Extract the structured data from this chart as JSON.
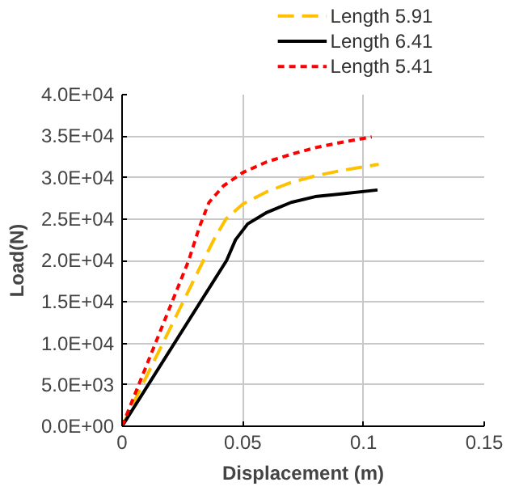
{
  "chart_data": {
    "type": "line",
    "xlabel": "Displacement (m)",
    "ylabel": "Load(N)",
    "xlim": [
      0,
      0.15
    ],
    "xticks": [
      0,
      0.05,
      0.1,
      0.15
    ],
    "ylim": [
      0,
      40000
    ],
    "yticks": [
      {
        "value": 0,
        "label": "0.0E+00"
      },
      {
        "value": 5000,
        "label": "5.0E+03"
      },
      {
        "value": 10000,
        "label": "1.0E+04"
      },
      {
        "value": 15000,
        "label": "1.5E+04"
      },
      {
        "value": 20000,
        "label": "2.0E+04"
      },
      {
        "value": 25000,
        "label": "2.5E+04"
      },
      {
        "value": 30000,
        "label": "3.0E+04"
      },
      {
        "value": 35000,
        "label": "3.5E+04"
      },
      {
        "value": 40000,
        "label": "4.0E+04"
      }
    ],
    "grid": true,
    "legend": "top right",
    "marker": "none",
    "series": [
      {
        "name": "Length 5.91",
        "color": "#ffc000",
        "line_style": "dashed",
        "x": [
          0,
          0.0337,
          0.038,
          0.043,
          0.05,
          0.06,
          0.07,
          0.08,
          0.09,
          0.1063
        ],
        "values": [
          0,
          20000,
          22500,
          25000,
          26800,
          28300,
          29400,
          30200,
          30800,
          31600
        ]
      },
      {
        "name": "Length 6.41",
        "color": "#000000",
        "line_style": "solid",
        "x": [
          0,
          0.0433,
          0.047,
          0.052,
          0.06,
          0.07,
          0.08,
          0.09,
          0.1058
        ],
        "values": [
          0,
          20000,
          22500,
          24400,
          25800,
          27000,
          27700,
          28000,
          28500
        ]
      },
      {
        "name": "Length 5.41",
        "color": "#ff0000",
        "line_style": "dotted",
        "x": [
          0,
          0.0276,
          0.032,
          0.036,
          0.042,
          0.05,
          0.06,
          0.07,
          0.08,
          0.09,
          0.1034
        ],
        "values": [
          0,
          20000,
          24000,
          27000,
          29000,
          30600,
          31900,
          32800,
          33600,
          34200,
          34900
        ]
      }
    ]
  }
}
